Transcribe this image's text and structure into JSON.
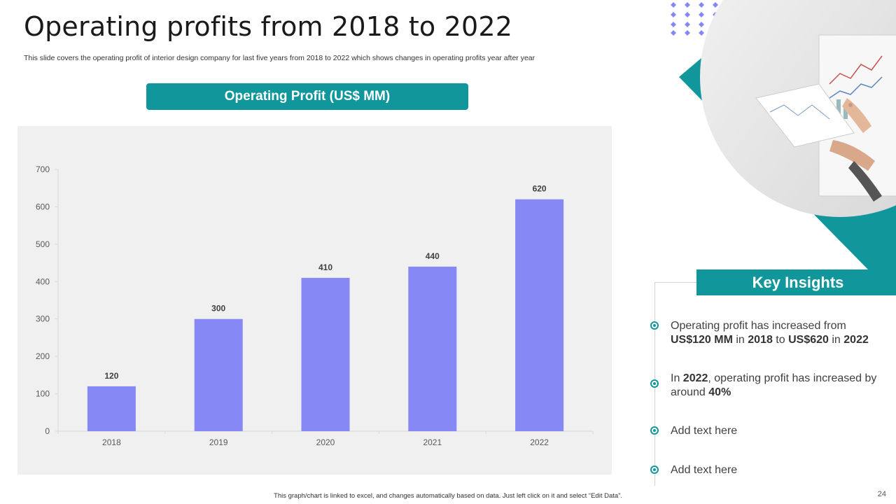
{
  "slide": {
    "title": "Operating profits from 2018 to 2022",
    "subtitle": "This slide covers the operating profit of interior design company for last five years from 2018 to 2022 which shows changes in operating profits year after year",
    "chart_header": "Operating Profit (US$ MM)",
    "footer_note": "This graph/chart is linked to excel, and changes automatically based on data. Just left click on it and select “Edit Data”.",
    "page_number": "24"
  },
  "insights": {
    "title": "Key Insights",
    "items": [
      {
        "parts": [
          "Operating profit has increased from ",
          "US$120 MM",
          " in ",
          "2018",
          " to ",
          "US$620",
          " in ",
          "2022"
        ]
      },
      {
        "parts": [
          "In ",
          "2022",
          ", operating profit has increased by around ",
          "40%"
        ]
      },
      {
        "text": "Add text here"
      },
      {
        "text": "Add text here"
      }
    ]
  },
  "colors": {
    "accent": "#11969c",
    "bar": "#8689f5",
    "panel": "#f0f0f0"
  },
  "chart_data": {
    "type": "bar",
    "title": "Operating Profit (US$ MM)",
    "categories": [
      "2018",
      "2019",
      "2020",
      "2021",
      "2022"
    ],
    "values": [
      120,
      300,
      410,
      440,
      620
    ],
    "ylim": [
      0,
      700
    ],
    "yticks": [
      0,
      100,
      200,
      300,
      400,
      500,
      600,
      700
    ],
    "xlabel": "",
    "ylabel": "",
    "data_labels": true,
    "grid": false
  }
}
